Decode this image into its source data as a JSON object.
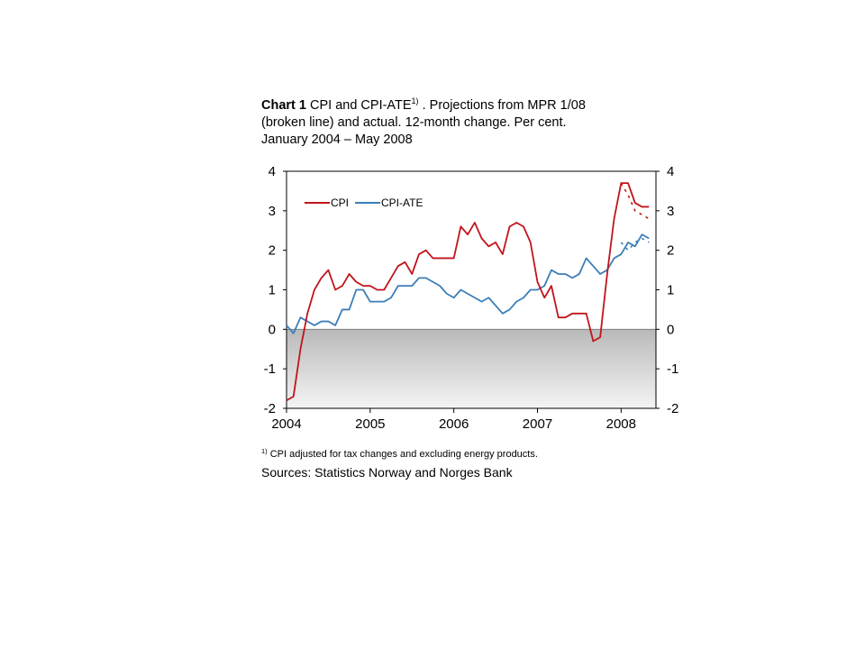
{
  "title": {
    "chart_number": "Chart 1",
    "text_before_sup": "CPI and CPI-ATE",
    "sup": "1)",
    "line1_rest": " . Projections from MPR 1/08",
    "line2": "(broken line) and actual. 12-month change. Per cent.",
    "line3": "January 2004 – May 2008"
  },
  "footnote": {
    "marker": "1)",
    "text": " CPI adjusted for tax changes and excluding energy products."
  },
  "sources": "Sources: Statistics Norway and Norges Bank",
  "colors": {
    "cpi": "#c0141b",
    "cpi_ate": "#3c7eb8",
    "zero_line": "#808080"
  },
  "chart_data": {
    "type": "line",
    "title": "",
    "xlabel": "",
    "ylabel": "",
    "ylim": [
      -2,
      4
    ],
    "y_ticks": [
      "4",
      "3",
      "2",
      "1",
      "0",
      "-1",
      "-2"
    ],
    "x_ticks": [
      "2004",
      "2005",
      "2006",
      "2007",
      "2008"
    ],
    "x_range": [
      "2004-01",
      "2008-06"
    ],
    "legend": {
      "position": "top-left",
      "entries": [
        "CPI",
        "CPI-ATE"
      ]
    },
    "background": "grey gradient below zero",
    "series": [
      {
        "name": "CPI",
        "x_start": "2004-01",
        "frequency": "monthly",
        "values": [
          -1.8,
          -1.7,
          -0.5,
          0.4,
          1.0,
          1.3,
          1.5,
          1.0,
          1.1,
          1.4,
          1.2,
          1.1,
          1.1,
          1.0,
          1.0,
          1.3,
          1.6,
          1.7,
          1.4,
          1.9,
          2.0,
          1.8,
          1.8,
          1.8,
          1.8,
          2.6,
          2.4,
          2.7,
          2.3,
          2.1,
          2.2,
          1.9,
          2.6,
          2.7,
          2.6,
          2.2,
          1.2,
          0.8,
          1.1,
          0.3,
          0.3,
          0.4,
          0.4,
          0.4,
          -0.3,
          -0.2,
          1.4,
          2.8,
          3.7,
          3.7,
          3.2,
          3.1,
          3.1
        ]
      },
      {
        "name": "CPI-ATE",
        "x_start": "2004-01",
        "frequency": "monthly",
        "values": [
          0.1,
          -0.1,
          0.3,
          0.2,
          0.1,
          0.2,
          0.2,
          0.1,
          0.5,
          0.5,
          1.0,
          1.0,
          0.7,
          0.7,
          0.7,
          0.8,
          1.1,
          1.1,
          1.1,
          1.3,
          1.3,
          1.2,
          1.1,
          0.9,
          0.8,
          1.0,
          0.9,
          0.8,
          0.7,
          0.8,
          0.6,
          0.4,
          0.5,
          0.7,
          0.8,
          1.0,
          1.0,
          1.1,
          1.5,
          1.4,
          1.4,
          1.3,
          1.4,
          1.8,
          1.6,
          1.4,
          1.5,
          1.8,
          1.9,
          2.2,
          2.1,
          2.4,
          2.3
        ]
      },
      {
        "x_start": "2008-01",
        "frequency": "monthly",
        "style": "dashed",
        "color_key": "cpi",
        "values": [
          3.7,
          3.4,
          3.0,
          2.9,
          2.8
        ]
      },
      {
        "x_start": "2008-01",
        "frequency": "monthly",
        "style": "dashed",
        "color_key": "cpi_ate",
        "values": [
          2.2,
          2.0,
          2.2,
          2.3,
          2.2
        ]
      }
    ]
  }
}
